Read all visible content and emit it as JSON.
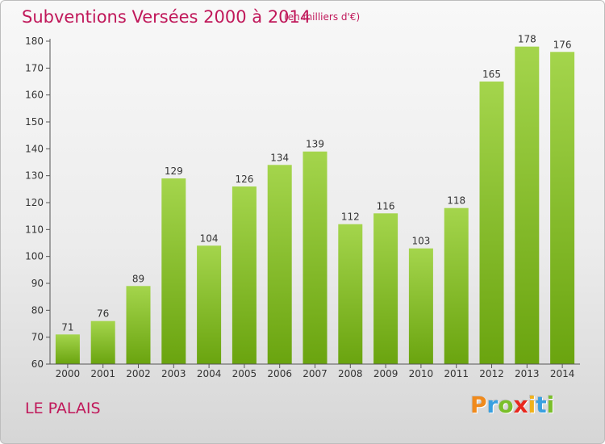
{
  "header": {
    "title": "Subventions Versées 2000 à 2014",
    "unit": "(en milliers d'€)"
  },
  "footer": {
    "commune": "LE PALAIS",
    "logo": {
      "text": "Proxiti",
      "letters": [
        "P",
        "r",
        "o",
        "x",
        "i",
        "t",
        "i"
      ],
      "colors": [
        "#f08a1c",
        "#3aa0e0",
        "#7abf2a",
        "#e8281e",
        "#f0b21c",
        "#3aa0e0",
        "#7abf2a"
      ]
    }
  },
  "chart_data": {
    "type": "bar",
    "title": "Subventions Versées 2000 à 2014",
    "xlabel": "",
    "ylabel": "",
    "categories": [
      "2000",
      "2001",
      "2002",
      "2003",
      "2004",
      "2005",
      "2006",
      "2007",
      "2008",
      "2009",
      "2010",
      "2011",
      "2012",
      "2013",
      "2014"
    ],
    "values": [
      71,
      76,
      89,
      129,
      104,
      126,
      134,
      139,
      112,
      116,
      103,
      118,
      165,
      178,
      176
    ],
    "ylim": [
      60,
      180
    ],
    "yticks": [
      60,
      70,
      80,
      90,
      100,
      110,
      120,
      130,
      140,
      150,
      160,
      170,
      180
    ],
    "grid": false,
    "data_labels": true,
    "colors": {
      "bar_top": "#a4d54c",
      "bar_bottom": "#6aa40f",
      "axis": "#555555",
      "text": "#333333"
    }
  }
}
